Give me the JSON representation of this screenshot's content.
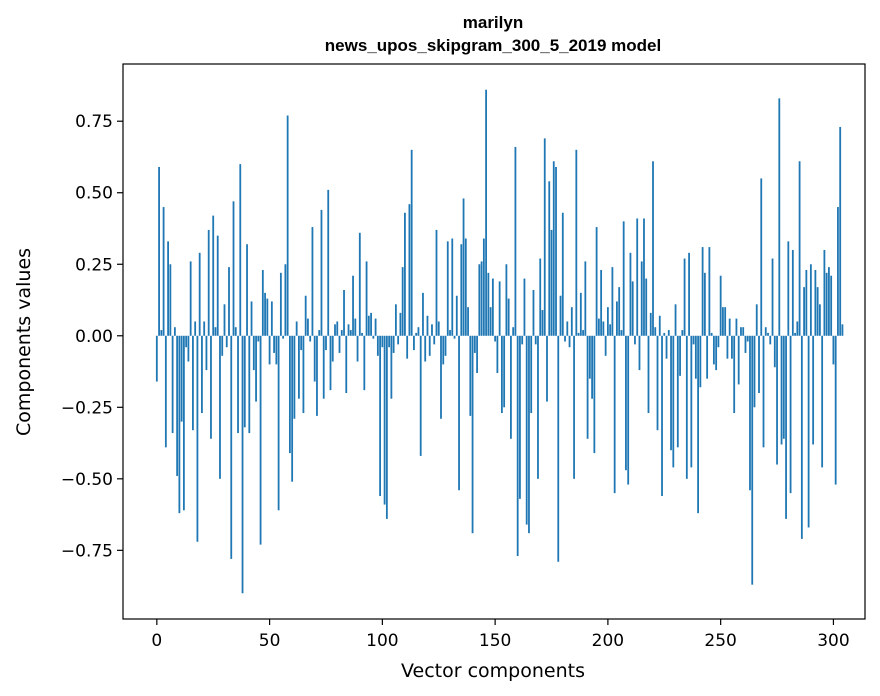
{
  "chart_data": {
    "type": "bar",
    "title": "marilyn",
    "subtitle": "news_upos_skipgram_300_5_2019 model",
    "xlabel": "Vector components",
    "ylabel": "Components values",
    "xlim": [
      -15,
      314
    ],
    "ylim": [
      -0.99,
      0.95
    ],
    "x_ticks": [
      0,
      50,
      100,
      150,
      200,
      250,
      300
    ],
    "x_tick_labels": [
      "0",
      "50",
      "100",
      "150",
      "200",
      "250",
      "300"
    ],
    "y_ticks": [
      -0.75,
      -0.5,
      -0.25,
      0.0,
      0.25,
      0.5,
      0.75
    ],
    "y_tick_labels": [
      "−0.75",
      "−0.50",
      "−0.25",
      "0.00",
      "0.25",
      "0.50",
      "0.75"
    ],
    "series": [
      {
        "name": "marilyn",
        "color": "#1f77b4",
        "values": [
          -0.16,
          0.59,
          0.02,
          0.45,
          -0.39,
          0.33,
          0.25,
          -0.34,
          0.03,
          -0.49,
          -0.62,
          -0.3,
          -0.61,
          -0.04,
          -0.09,
          0.26,
          -0.33,
          0.05,
          -0.72,
          0.29,
          -0.27,
          0.05,
          -0.12,
          0.37,
          -0.36,
          0.42,
          0.03,
          0.35,
          -0.5,
          -0.07,
          0.11,
          -0.04,
          0.24,
          -0.78,
          0.47,
          0.03,
          -0.34,
          0.6,
          -0.9,
          -0.32,
          0.32,
          -0.34,
          0.12,
          -0.12,
          -0.23,
          -0.02,
          -0.73,
          0.23,
          0.15,
          0.13,
          -0.1,
          0.12,
          -0.06,
          -0.1,
          -0.61,
          0.22,
          -0.01,
          0.25,
          0.77,
          -0.41,
          -0.51,
          -0.29,
          0.05,
          -0.22,
          -0.05,
          -0.27,
          0.14,
          0.06,
          -0.02,
          0.38,
          -0.16,
          -0.28,
          0.02,
          0.44,
          -0.22,
          -0.05,
          0.51,
          -0.19,
          -0.09,
          0.04,
          0.05,
          -0.06,
          0.02,
          0.16,
          -0.2,
          0.04,
          0.02,
          0.21,
          0.06,
          -0.09,
          0.36,
          0.01,
          -0.19,
          0.26,
          0.07,
          0.08,
          -0.01,
          0.06,
          -0.07,
          -0.56,
          -0.04,
          -0.59,
          -0.64,
          -0.04,
          -0.22,
          -0.06,
          0.11,
          -0.03,
          0.08,
          0.24,
          0.43,
          -0.08,
          0.46,
          0.65,
          -0.05,
          0.01,
          0.03,
          -0.42,
          0.15,
          -0.09,
          0.07,
          -0.07,
          0.04,
          -0.03,
          0.37,
          0.05,
          -0.29,
          -0.1,
          -0.07,
          0.33,
          0.02,
          0.34,
          -0.01,
          0.14,
          -0.54,
          0.32,
          0.48,
          0.34,
          0.1,
          -0.28,
          -0.69,
          -0.06,
          -0.13,
          0.25,
          0.26,
          0.34,
          0.86,
          0.22,
          0.1,
          0.2,
          -0.02,
          -0.13,
          0.19,
          -0.27,
          -0.25,
          0.25,
          0.13,
          -0.36,
          0.03,
          0.66,
          -0.77,
          -0.57,
          -0.03,
          0.2,
          -0.66,
          -0.69,
          -0.27,
          0.16,
          -0.03,
          -0.5,
          0.27,
          0.09,
          0.69,
          -0.23,
          0.54,
          0.37,
          0.61,
          0.59,
          -0.79,
          0.14,
          0.43,
          -0.02,
          0.05,
          -0.04,
          0.1,
          -0.5,
          0.65,
          0.01,
          0.15,
          0.02,
          0.26,
          -0.36,
          -0.15,
          -0.22,
          -0.41,
          0.38,
          0.06,
          0.23,
          0.05,
          -0.07,
          0.1,
          0.04,
          0.24,
          -0.55,
          0.12,
          0.17,
          0.02,
          0.4,
          -0.47,
          -0.52,
          0.29,
          0.19,
          -0.03,
          0.41,
          -0.12,
          0.26,
          0.41,
          0.2,
          -0.27,
          0.08,
          0.61,
          0.03,
          -0.33,
          0.07,
          -0.56,
          0.01,
          -0.08,
          0.02,
          -0.4,
          -0.46,
          0.11,
          -0.39,
          -0.14,
          0.02,
          0.27,
          -0.5,
          0.29,
          -0.46,
          -0.03,
          -0.15,
          -0.62,
          -0.18,
          0.31,
          0.22,
          -0.15,
          0.31,
          0.01,
          -0.1,
          -0.12,
          -0.04,
          0.21,
          0.1,
          0.1,
          -0.08,
          0.06,
          -0.08,
          -0.27,
          0.06,
          -0.17,
          0.03,
          0.03,
          -0.06,
          -0.02,
          -0.54,
          -0.87,
          -0.25,
          0.11,
          -0.2,
          0.55,
          -0.39,
          0.03,
          0.01,
          -0.03,
          0.27,
          -0.11,
          -0.45,
          0.83,
          -0.38,
          -0.36,
          -0.64,
          0.33,
          -0.55,
          0.3,
          0.01,
          0.05,
          0.61,
          -0.71,
          0.17,
          0.23,
          -0.67,
          0.25,
          -0.38,
          0.23,
          0.17,
          0.11,
          -0.46,
          0.3,
          0.22,
          0.24,
          0.21,
          -0.1,
          -0.52,
          0.45,
          0.73,
          0.04
        ]
      }
    ]
  }
}
